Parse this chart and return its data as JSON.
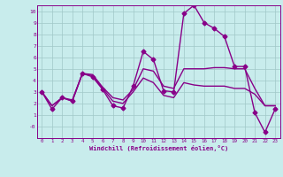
{
  "xlabel": "Windchill (Refroidissement éolien,°C)",
  "xlim": [
    -0.5,
    23.5
  ],
  "ylim": [
    -1.0,
    10.5
  ],
  "yticks": [
    0,
    1,
    2,
    3,
    4,
    5,
    6,
    7,
    8,
    9,
    10
  ],
  "ytick_labels": [
    "-0",
    "1",
    "2",
    "3",
    "4",
    "5",
    "6",
    "7",
    "8",
    "9",
    "10"
  ],
  "xticks": [
    0,
    1,
    2,
    3,
    4,
    5,
    6,
    7,
    8,
    9,
    10,
    11,
    12,
    13,
    14,
    15,
    16,
    17,
    18,
    19,
    20,
    21,
    22,
    23
  ],
  "background_color": "#c8ecec",
  "grid_color": "#a0c8c8",
  "line_color": "#880088",
  "line1_y": [
    3,
    1.5,
    2.5,
    2.2,
    4.6,
    4.3,
    3.2,
    1.8,
    1.6,
    3.5,
    6.5,
    5.8,
    3.1,
    3.0,
    9.8,
    10.5,
    9.0,
    8.5,
    7.8,
    5.2,
    5.2,
    1.2,
    -0.5,
    1.5
  ],
  "line2_y": [
    3.0,
    1.8,
    2.5,
    2.3,
    4.6,
    4.5,
    3.4,
    2.5,
    2.3,
    3.2,
    5.0,
    4.8,
    3.5,
    3.3,
    5.0,
    5.0,
    5.0,
    5.1,
    5.1,
    5.0,
    5.0,
    3.3,
    1.8,
    1.8
  ],
  "line3_y": [
    3.0,
    1.8,
    2.5,
    2.2,
    4.6,
    4.4,
    3.3,
    2.2,
    2.0,
    3.0,
    4.2,
    3.8,
    2.7,
    2.5,
    3.8,
    3.6,
    3.5,
    3.5,
    3.5,
    3.3,
    3.3,
    2.8,
    1.8,
    1.8
  ],
  "linewidth": 1.0,
  "markersize": 2.5
}
